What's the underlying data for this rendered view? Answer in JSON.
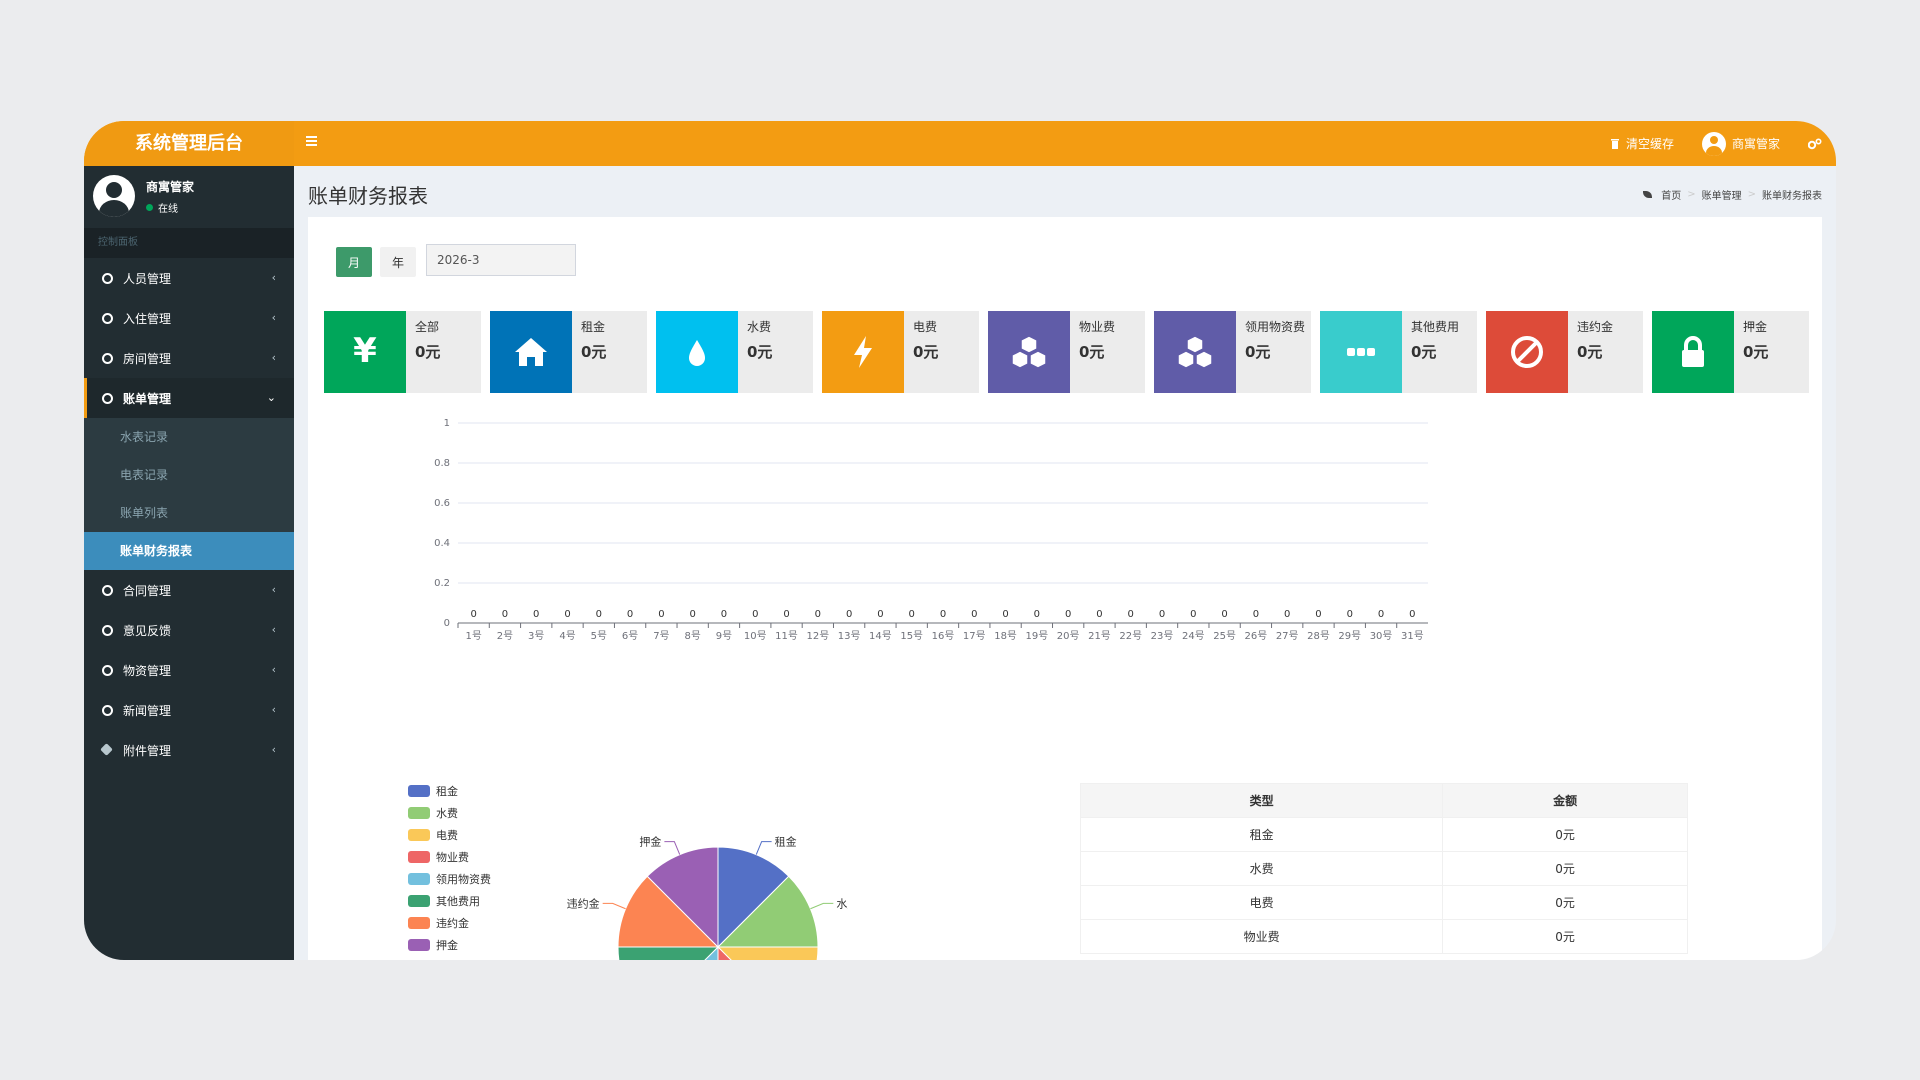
{
  "app": {
    "title": "系统管理后台"
  },
  "header": {
    "clear_cache": "清空缓存",
    "user": "商寓管家"
  },
  "sidebar": {
    "user_name": "商寓管家",
    "status": "在线",
    "section": "控制面板",
    "items": [
      {
        "label": "人员管理"
      },
      {
        "label": "入住管理"
      },
      {
        "label": "房间管理"
      },
      {
        "label": "账单管理"
      },
      {
        "label": "合同管理"
      },
      {
        "label": "意见反馈"
      },
      {
        "label": "物资管理"
      },
      {
        "label": "新闻管理"
      },
      {
        "label": "附件管理"
      }
    ],
    "submenu": [
      "水表记录",
      "电表记录",
      "账单列表",
      "账单财务报表"
    ]
  },
  "page": {
    "title": "账单财务报表",
    "breadcrumb": [
      "首页",
      "账单管理",
      "账单财务报表"
    ]
  },
  "filters": {
    "month": "月",
    "year": "年",
    "date_value": "2026-3"
  },
  "cards": [
    {
      "label": "全部",
      "value": "0元",
      "color": "#00a65a",
      "icon": "yen-icon"
    },
    {
      "label": "租金",
      "value": "0元",
      "color": "#0073b7",
      "icon": "home-icon"
    },
    {
      "label": "水费",
      "value": "0元",
      "color": "#00c0ef",
      "icon": "water-drop-icon"
    },
    {
      "label": "电费",
      "value": "0元",
      "color": "#f39c12",
      "icon": "bolt-icon"
    },
    {
      "label": "物业费",
      "value": "0元",
      "color": "#605ca8",
      "icon": "cubes-icon"
    },
    {
      "label": "领用物资费",
      "value": "0元",
      "color": "#605ca8",
      "icon": "cubes-icon"
    },
    {
      "label": "其他费用",
      "value": "0元",
      "color": "#39cccc",
      "icon": "ellipsis-icon"
    },
    {
      "label": "违约金",
      "value": "0元",
      "color": "#dd4b39",
      "icon": "ban-icon"
    },
    {
      "label": "押金",
      "value": "0元",
      "color": "#00a65a",
      "icon": "lock-icon"
    }
  ],
  "chart_data": [
    {
      "type": "line",
      "categories": [
        "1号",
        "2号",
        "3号",
        "4号",
        "5号",
        "6号",
        "7号",
        "8号",
        "9号",
        "10号",
        "11号",
        "12号",
        "13号",
        "14号",
        "15号",
        "16号",
        "17号",
        "18号",
        "19号",
        "20号",
        "21号",
        "22号",
        "23号",
        "24号",
        "25号",
        "26号",
        "27号",
        "28号",
        "29号",
        "30号",
        "31号"
      ],
      "values": [
        0,
        0,
        0,
        0,
        0,
        0,
        0,
        0,
        0,
        0,
        0,
        0,
        0,
        0,
        0,
        0,
        0,
        0,
        0,
        0,
        0,
        0,
        0,
        0,
        0,
        0,
        0,
        0,
        0,
        0,
        0
      ],
      "yticks": [
        "0",
        "0.2",
        "0.4",
        "0.6",
        "0.8",
        "1"
      ],
      "ylim": [
        0,
        1
      ],
      "grid": true
    },
    {
      "type": "pie",
      "legend": [
        "租金",
        "水费",
        "电费",
        "物业费",
        "领用物资费",
        "其他费用",
        "违约金",
        "押金"
      ],
      "colors": [
        "#5470c6",
        "#91cc75",
        "#fac858",
        "#ee6666",
        "#73c0de",
        "#3ba272",
        "#fc8452",
        "#9a60b4"
      ],
      "values": [
        1,
        1,
        1,
        1,
        1,
        1,
        1,
        1
      ],
      "visible_labels": [
        "租金",
        "水费",
        "违约金",
        "押金"
      ]
    }
  ],
  "table": {
    "headers": [
      "类型",
      "金额"
    ],
    "rows": [
      [
        "租金",
        "0元"
      ],
      [
        "水费",
        "0元"
      ],
      [
        "电费",
        "0元"
      ],
      [
        "物业费",
        "0元"
      ]
    ]
  }
}
